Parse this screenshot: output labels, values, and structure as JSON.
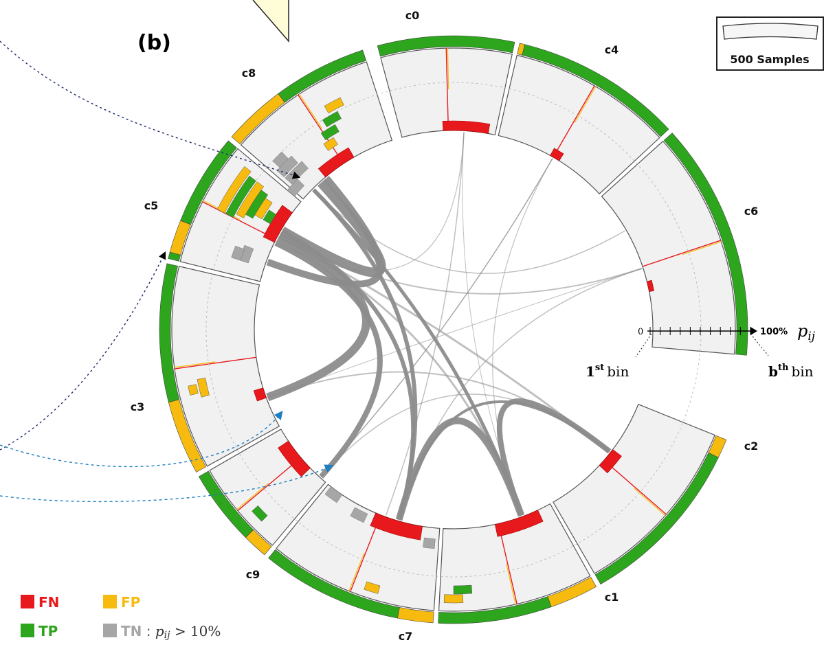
{
  "panel_label": "(b)",
  "scale_box": {
    "label": "500 Samples"
  },
  "classes": [
    {
      "name": "c0"
    },
    {
      "name": "c4"
    },
    {
      "name": "c6"
    },
    {
      "name": "c2"
    },
    {
      "name": "c1"
    },
    {
      "name": "c7"
    },
    {
      "name": "c9"
    },
    {
      "name": "c3"
    },
    {
      "name": "c5"
    },
    {
      "name": "c8"
    }
  ],
  "axis_annotation": {
    "start": "0",
    "end": "100%",
    "variable": "p",
    "variable_sub": "ij",
    "first_bin": "1",
    "first_bin_sup": "st",
    "last_bin": "b",
    "last_bin_sup": "th",
    "bin_word": "bin"
  },
  "legend": {
    "fn": "FN",
    "fp": "FP",
    "tp": "TP",
    "tn": "TN",
    "tn_condition_var": "p",
    "tn_condition_sub": "ij",
    "tn_condition_rest": " > 10%"
  },
  "colors": {
    "fn": "#e8191c",
    "fp": "#f6bb0e",
    "tp": "#2da51d",
    "tn": "#a6a6a6",
    "sector_fill": "#f1f1f1",
    "chord": "#8c8c8c"
  }
}
